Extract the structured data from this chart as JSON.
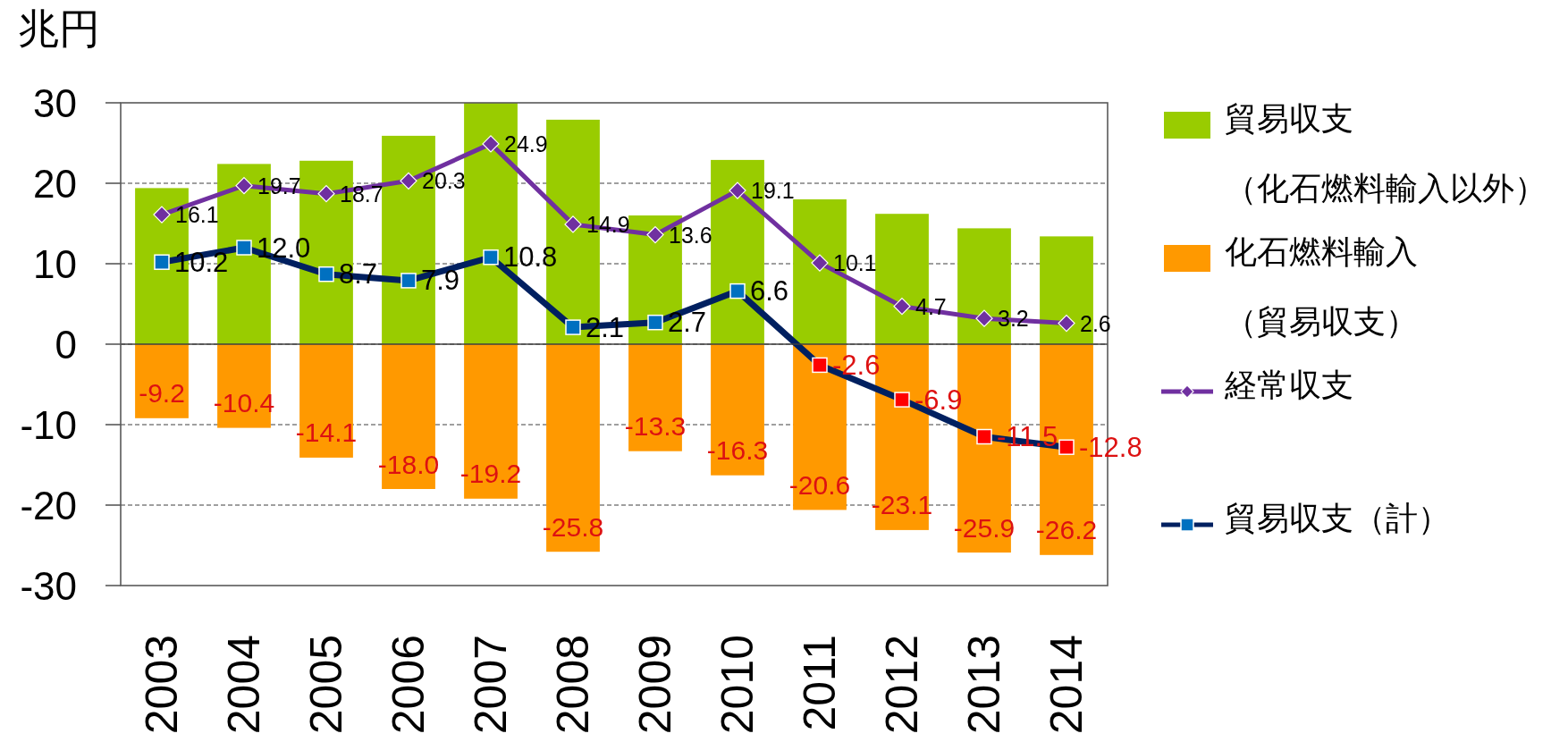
{
  "chart_data": {
    "type": "bar",
    "stacked": true,
    "ylabel": "兆円",
    "categories": [
      "2003",
      "2004",
      "2005",
      "2006",
      "2007",
      "2008",
      "2009",
      "2010",
      "2011",
      "2012",
      "2013",
      "2014"
    ],
    "ylim": [
      -30,
      30
    ],
    "yticks": [
      -30,
      -20,
      -10,
      0,
      10,
      20,
      30
    ],
    "grid": "y",
    "legend": "right",
    "series": [
      {
        "name": "貿易収支（化石燃料輸入以外）",
        "color": "#99cc00",
        "values": [
          19.4,
          22.4,
          22.8,
          25.9,
          30.0,
          27.9,
          16.0,
          22.9,
          18.0,
          16.2,
          14.4,
          13.4
        ]
      },
      {
        "name": "化石燃料輸入（貿易収支）",
        "color": "#ff9900",
        "values": [
          -9.2,
          -10.4,
          -14.1,
          -18.0,
          -19.2,
          -25.8,
          -13.3,
          -16.3,
          -20.6,
          -23.1,
          -25.9,
          -26.2
        ],
        "value_labels": [
          "-9.2",
          "-10.4",
          "-14.1",
          "-18.0",
          "-19.2",
          "-25.8",
          "-13.3",
          "-16.3",
          "-20.6",
          "-23.1",
          "-25.9",
          "-26.2"
        ]
      },
      {
        "name": "経常収支",
        "type": "line",
        "color": "#7030a0",
        "marker": "diamond",
        "values": [
          16.1,
          19.7,
          18.7,
          20.3,
          24.9,
          14.9,
          13.6,
          19.1,
          10.1,
          4.7,
          3.2,
          2.6
        ],
        "value_labels": [
          "16.1",
          "19.7",
          "18.7",
          "20.3",
          "24.9",
          "14.9",
          "13.6",
          "19.1",
          "10.1",
          "4.7",
          "3.2",
          "2.6"
        ]
      },
      {
        "name": "貿易収支（計）",
        "type": "line",
        "color": "#002060",
        "colors": [
          "#0070c0",
          "#0070c0",
          "#0070c0",
          "#0070c0",
          "#0070c0",
          "#0070c0",
          "#0070c0",
          "#0070c0",
          "#ff0000",
          "#ff0000",
          "#ff0000",
          "#ff0000"
        ],
        "marker": "square",
        "values": [
          10.2,
          12.0,
          8.7,
          7.9,
          10.8,
          2.1,
          2.7,
          6.6,
          -2.6,
          -6.9,
          -11.5,
          -12.8
        ],
        "value_labels": [
          "10.2",
          "12.0",
          "8.7",
          "7.9",
          "10.8",
          "2.1",
          "2.7",
          "6.6",
          "-2.6",
          "-6.9",
          "-11.5",
          "-12.8"
        ]
      }
    ]
  }
}
